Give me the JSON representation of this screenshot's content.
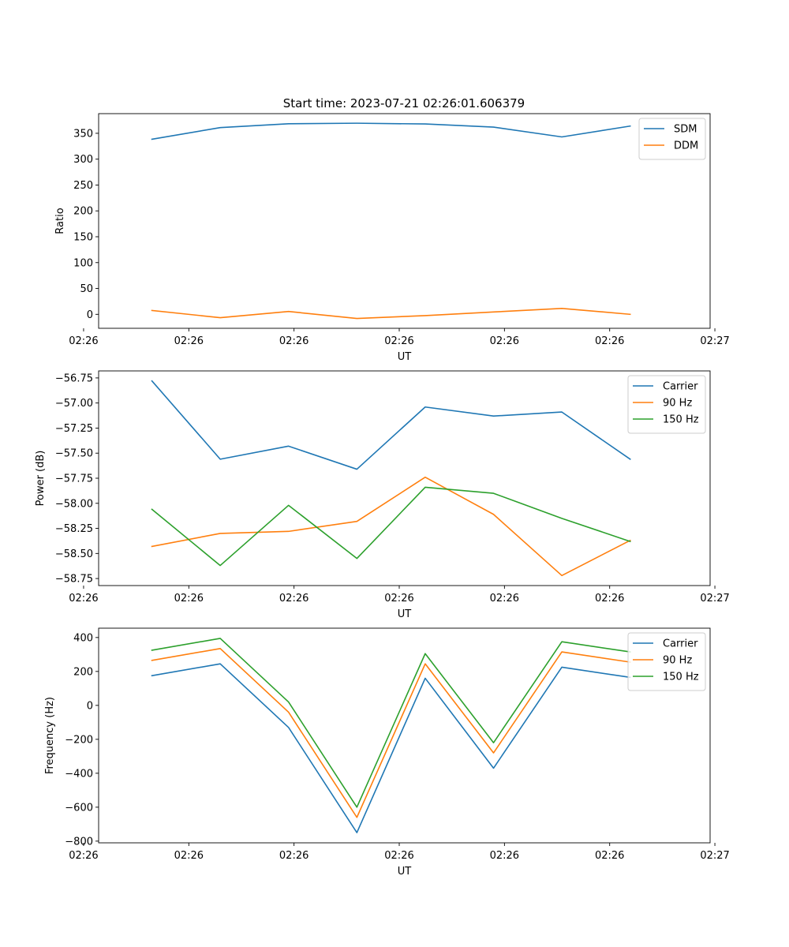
{
  "figure": {
    "title": "Start time: 2023-07-21 02:26:01.606379"
  },
  "series_colors": {
    "blue": "#1f77b4",
    "orange": "#ff7f0e",
    "green": "#2ca02c"
  },
  "chart_data": [
    {
      "type": "line",
      "title": "Start time: 2023-07-21 02:26:01.606379",
      "xlabel": "UT",
      "ylabel": "Ratio",
      "x": [
        1,
        2,
        3,
        4,
        5,
        6,
        7,
        8
      ],
      "xlim": [
        0.22,
        9.17
      ],
      "x_ticks": [
        0,
        1.54,
        3.08,
        4.62,
        6.16,
        7.7,
        9.24
      ],
      "x_tick_labels": [
        "02:26",
        "02:26",
        "02:26",
        "02:26",
        "02:26",
        "02:26",
        "02:27"
      ],
      "ylim": [
        -27,
        388
      ],
      "y_ticks": [
        0,
        50,
        100,
        150,
        200,
        250,
        300,
        350
      ],
      "y_tick_labels": [
        "0",
        "50",
        "100",
        "150",
        "200",
        "250",
        "300",
        "350"
      ],
      "legend_position": "top-right",
      "series": [
        {
          "name": "SDM",
          "color": "#1f77b4",
          "values": [
            338.5,
            361,
            368.5,
            369.5,
            368,
            362,
            343,
            364
          ]
        },
        {
          "name": "DDM",
          "color": "#ff7f0e",
          "values": [
            7.5,
            -6.5,
            5.5,
            -8,
            -2.5,
            4.5,
            11.5,
            0
          ]
        }
      ]
    },
    {
      "type": "line",
      "title": "",
      "xlabel": "UT",
      "ylabel": "Power (dB)",
      "x": [
        1,
        2,
        3,
        4,
        5,
        6,
        7,
        8
      ],
      "xlim": [
        0.22,
        9.17
      ],
      "x_ticks": [
        0,
        1.54,
        3.08,
        4.62,
        6.16,
        7.7,
        9.24
      ],
      "x_tick_labels": [
        "02:26",
        "02:26",
        "02:26",
        "02:26",
        "02:26",
        "02:26",
        "02:27"
      ],
      "ylim": [
        -58.82,
        -56.68
      ],
      "y_ticks": [
        -58.75,
        -58.5,
        -58.25,
        -58.0,
        -57.75,
        -57.5,
        -57.25,
        -57.0,
        -56.75
      ],
      "y_tick_labels": [
        "−58.75",
        "−58.50",
        "−58.25",
        "−58.00",
        "−57.75",
        "−57.50",
        "−57.25",
        "−57.00",
        "−56.75"
      ],
      "legend_position": "top-right",
      "series": [
        {
          "name": "Carrier",
          "color": "#1f77b4",
          "values": [
            -56.78,
            -57.56,
            -57.43,
            -57.66,
            -57.04,
            -57.13,
            -57.09,
            -57.56
          ]
        },
        {
          "name": "90 Hz",
          "color": "#ff7f0e",
          "values": [
            -58.43,
            -58.3,
            -58.28,
            -58.18,
            -57.74,
            -58.11,
            -58.72,
            -58.37
          ]
        },
        {
          "name": "150 Hz",
          "color": "#2ca02c",
          "values": [
            -58.06,
            -58.62,
            -58.02,
            -58.55,
            -57.84,
            -57.9,
            -58.15,
            -58.38
          ]
        }
      ]
    },
    {
      "type": "line",
      "title": "",
      "xlabel": "UT",
      "ylabel": "Frequency (Hz)",
      "x": [
        1,
        2,
        3,
        4,
        5,
        6,
        7,
        8
      ],
      "xlim": [
        0.22,
        9.17
      ],
      "x_ticks": [
        0,
        1.54,
        3.08,
        4.62,
        6.16,
        7.7,
        9.24
      ],
      "x_tick_labels": [
        "02:26",
        "02:26",
        "02:26",
        "02:26",
        "02:26",
        "02:26",
        "02:27"
      ],
      "ylim": [
        -810,
        455
      ],
      "y_ticks": [
        -800,
        -600,
        -400,
        -200,
        0,
        200,
        400
      ],
      "y_tick_labels": [
        "−800",
        "−600",
        "−400",
        "−200",
        "0",
        "200",
        "400"
      ],
      "legend_position": "top-right",
      "series": [
        {
          "name": "Carrier",
          "color": "#1f77b4",
          "values": [
            175,
            245,
            -130,
            -750,
            160,
            -370,
            225,
            165
          ]
        },
        {
          "name": "90 Hz",
          "color": "#ff7f0e",
          "values": [
            265,
            335,
            -40,
            -660,
            245,
            -280,
            315,
            255
          ]
        },
        {
          "name": "150 Hz",
          "color": "#2ca02c",
          "values": [
            325,
            395,
            20,
            -600,
            305,
            -220,
            375,
            315
          ]
        }
      ]
    }
  ]
}
